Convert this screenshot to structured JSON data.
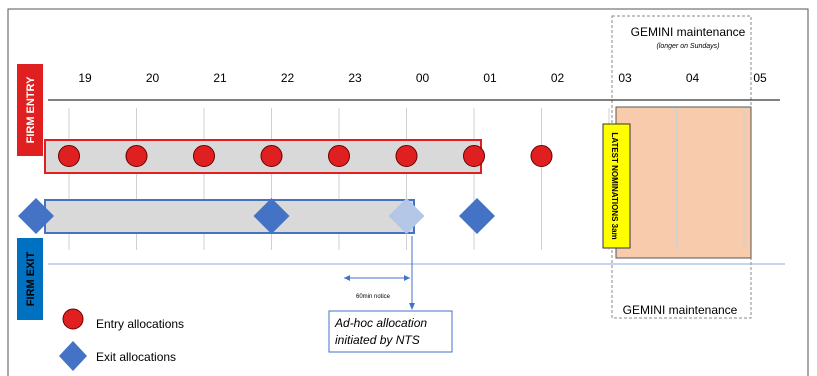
{
  "hours": [
    "19",
    "20",
    "21",
    "22",
    "23",
    "00",
    "01",
    "02",
    "03",
    "04",
    "05"
  ],
  "gemini": {
    "title": "GEMINI maintenance",
    "subtitle": "(longer on Sundays)",
    "bottom_label": "GEMINI maintenance"
  },
  "side_labels": {
    "entry": "FIRM ENTRY",
    "exit": "FIRM EXIT"
  },
  "latest_nominations": "LATEST NOMINATIONS 3am",
  "notice_label": "60min notice",
  "callout": {
    "line1": "Ad-hoc allocation",
    "line2": "initiated by NTS"
  },
  "legend": {
    "entry": "Entry allocations",
    "exit": "Exit allocations"
  },
  "entry_allocations": [
    "19",
    "20",
    "21",
    "22",
    "23",
    "00",
    "01",
    "02"
  ],
  "exit_allocations": [
    "18",
    "22",
    "01"
  ],
  "adhoc_exit_allocation": "00",
  "colors": {
    "entry_red": "#e02020",
    "exit_blue": "#4472c4",
    "adhoc_light_blue": "#b4c7e7",
    "firm_exit_blue": "#0070c0",
    "maintenance_fill": "#f8cbad",
    "latest_yellow": "#ffff00"
  }
}
